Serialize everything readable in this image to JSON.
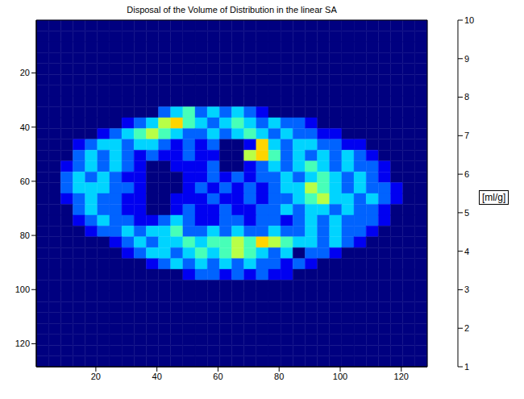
{
  "chart_data": {
    "type": "heatmap",
    "title": "Disposal of the Volume of Distribution in the linear SA",
    "xlim": [
      0.5,
      128.5
    ],
    "ylim": [
      128.5,
      0.5
    ],
    "xticks": [
      20,
      40,
      60,
      80,
      100,
      120
    ],
    "yticks": [
      20,
      40,
      60,
      80,
      100,
      120
    ],
    "x_edges": [
      0.5,
      4.5,
      8.5,
      12.5,
      16.5,
      20.5,
      24.5,
      28.5,
      32.5,
      36.5,
      40.5,
      44.5,
      48.5,
      52.5,
      56.5,
      60.5,
      64.5,
      68.5,
      72.5,
      76.5,
      80.5,
      84.5,
      88.5,
      92.5,
      96.5,
      100.5,
      104.5,
      108.5,
      112.5,
      116.5,
      120.5,
      124.5,
      128.5
    ],
    "y_edges": [
      0.5,
      4.5,
      8.5,
      12.5,
      16.5,
      20.5,
      24.5,
      28.5,
      32.5,
      36.5,
      40.5,
      44.5,
      48.5,
      52.5,
      56.5,
      60.5,
      64.5,
      68.5,
      72.5,
      76.5,
      80.5,
      84.5,
      88.5,
      92.5,
      96.5,
      100.5,
      104.5,
      108.5,
      112.5,
      116.5,
      120.5,
      124.5,
      128.5
    ],
    "cells": [
      [
        1,
        1,
        1,
        1,
        1,
        1,
        1,
        1,
        1,
        1,
        1,
        1,
        1,
        1,
        1,
        1,
        1,
        1,
        1,
        1,
        1,
        1,
        1,
        1,
        1,
        1,
        1,
        1,
        1,
        1,
        1,
        1
      ],
      [
        1,
        1,
        1,
        1,
        1,
        1,
        1,
        1,
        1,
        1,
        1,
        1,
        1,
        1,
        1,
        1,
        1,
        1,
        1,
        1,
        1,
        1,
        1,
        1,
        1,
        1,
        1,
        1,
        1,
        1,
        1,
        1
      ],
      [
        1,
        1,
        1,
        1,
        1,
        1,
        1,
        1,
        1,
        1,
        1,
        1,
        1,
        1,
        1,
        1,
        1,
        1,
        1,
        1,
        1,
        1,
        1,
        1,
        1,
        1,
        1,
        1,
        1,
        1,
        1,
        1
      ],
      [
        1,
        1,
        1,
        1,
        1,
        1,
        1,
        1,
        1,
        1,
        1,
        1,
        1,
        1,
        1,
        1,
        1,
        1,
        1,
        1,
        1,
        1,
        1,
        1,
        1,
        1,
        1,
        1,
        1,
        1,
        1,
        1
      ],
      [
        1,
        1,
        1,
        1,
        1,
        1,
        1,
        1,
        1,
        1,
        1,
        1,
        1,
        1,
        1,
        1,
        1,
        1,
        1,
        1,
        1,
        1,
        1,
        1,
        1,
        1,
        1,
        1,
        1,
        1,
        1,
        1
      ],
      [
        1,
        1,
        1,
        1,
        1,
        1,
        1,
        1,
        1,
        1,
        1,
        1,
        1,
        1,
        1,
        1,
        1,
        1,
        1,
        1,
        1,
        1,
        1,
        1,
        1,
        1,
        1,
        1,
        1,
        1,
        1,
        1
      ],
      [
        1,
        1,
        1,
        1,
        1,
        1,
        1,
        1,
        1,
        1,
        1,
        1,
        1,
        1,
        1,
        1,
        1,
        1,
        1,
        1,
        1,
        1,
        1,
        1,
        1,
        1,
        1,
        1,
        1,
        1,
        1,
        1
      ],
      [
        1,
        1,
        1,
        1,
        1,
        1,
        1,
        1,
        1,
        1,
        1,
        1,
        1,
        1,
        1,
        1,
        1,
        1,
        1,
        1,
        1,
        1,
        1,
        1,
        1,
        1,
        1,
        1,
        1,
        1,
        1,
        1
      ],
      [
        1,
        1,
        1,
        1,
        1,
        1,
        1,
        1,
        1,
        1,
        3,
        4,
        5,
        3,
        4,
        3,
        4,
        3,
        2,
        1,
        1,
        1,
        1,
        1,
        1,
        1,
        1,
        1,
        1,
        1,
        1,
        1
      ],
      [
        1,
        1,
        1,
        1,
        1,
        1,
        1,
        2,
        3,
        4,
        6,
        7,
        5,
        4,
        3,
        4,
        5,
        4,
        3,
        4,
        3,
        3,
        2,
        1,
        1,
        1,
        1,
        1,
        1,
        1,
        1,
        1
      ],
      [
        1,
        1,
        1,
        1,
        1,
        2,
        3,
        4,
        5,
        6,
        5,
        4,
        3,
        3,
        4,
        3,
        4,
        5,
        4,
        3,
        4,
        3,
        3,
        2,
        2,
        1,
        1,
        1,
        1,
        1,
        1,
        1
      ],
      [
        1,
        1,
        1,
        2,
        3,
        4,
        4,
        3,
        4,
        4,
        3,
        2,
        3,
        2,
        3,
        1,
        1,
        2,
        7,
        4,
        3,
        4,
        4,
        3,
        3,
        2,
        2,
        1,
        1,
        1,
        1,
        1
      ],
      [
        1,
        1,
        1,
        3,
        4,
        3,
        4,
        3,
        2,
        3,
        2,
        2,
        3,
        2,
        2,
        1,
        1,
        6,
        7,
        5,
        3,
        4,
        3,
        4,
        3,
        4,
        3,
        2,
        1,
        1,
        1,
        1
      ],
      [
        1,
        1,
        2,
        3,
        4,
        3,
        4,
        3,
        2,
        1,
        1,
        2,
        2,
        2,
        3,
        1,
        1,
        2,
        3,
        4,
        3,
        4,
        5,
        4,
        3,
        4,
        3,
        3,
        2,
        1,
        1,
        1
      ],
      [
        1,
        1,
        3,
        4,
        3,
        4,
        3,
        2,
        2,
        1,
        1,
        1,
        2,
        2,
        3,
        2,
        3,
        2,
        3,
        3,
        4,
        3,
        4,
        5,
        4,
        3,
        4,
        3,
        2,
        1,
        1,
        1
      ],
      [
        1,
        1,
        3,
        4,
        4,
        4,
        3,
        3,
        2,
        1,
        1,
        1,
        2,
        3,
        2,
        3,
        2,
        3,
        2,
        3,
        4,
        4,
        6,
        5,
        4,
        3,
        4,
        3,
        3,
        2,
        1,
        1
      ],
      [
        1,
        1,
        2,
        3,
        4,
        3,
        3,
        2,
        2,
        1,
        1,
        2,
        2,
        2,
        3,
        2,
        2,
        3,
        2,
        3,
        3,
        4,
        5,
        6,
        4,
        4,
        3,
        4,
        3,
        2,
        1,
        1
      ],
      [
        1,
        1,
        1,
        3,
        4,
        3,
        3,
        2,
        2,
        1,
        1,
        2,
        3,
        2,
        2,
        3,
        2,
        2,
        3,
        3,
        4,
        3,
        4,
        4,
        3,
        4,
        3,
        3,
        2,
        1,
        1,
        1
      ],
      [
        1,
        1,
        1,
        2,
        3,
        4,
        3,
        3,
        2,
        2,
        3,
        4,
        3,
        2,
        2,
        3,
        3,
        2,
        3,
        3,
        2,
        3,
        4,
        3,
        4,
        3,
        3,
        3,
        2,
        1,
        1,
        1
      ],
      [
        1,
        1,
        1,
        1,
        2,
        3,
        3,
        4,
        3,
        4,
        4,
        5,
        3,
        3,
        4,
        3,
        4,
        3,
        3,
        4,
        3,
        3,
        4,
        3,
        4,
        3,
        3,
        2,
        1,
        1,
        1,
        1
      ],
      [
        1,
        1,
        1,
        1,
        1,
        1,
        2,
        3,
        4,
        3,
        4,
        4,
        5,
        4,
        5,
        5,
        6,
        5,
        7,
        6,
        5,
        4,
        4,
        3,
        4,
        3,
        2,
        1,
        1,
        1,
        1,
        1
      ],
      [
        1,
        1,
        1,
        1,
        1,
        1,
        1,
        2,
        3,
        4,
        4,
        3,
        4,
        5,
        4,
        5,
        6,
        5,
        4,
        3,
        4,
        1,
        3,
        3,
        2,
        1,
        1,
        1,
        1,
        1,
        1,
        1
      ],
      [
        1,
        1,
        1,
        1,
        1,
        1,
        1,
        1,
        1,
        2,
        3,
        4,
        3,
        4,
        3,
        4,
        3,
        4,
        3,
        3,
        2,
        3,
        2,
        1,
        1,
        1,
        1,
        1,
        1,
        1,
        1,
        1
      ],
      [
        1,
        1,
        1,
        1,
        1,
        1,
        1,
        1,
        1,
        1,
        1,
        1,
        2,
        3,
        3,
        2,
        3,
        2,
        3,
        2,
        2,
        1,
        1,
        1,
        1,
        1,
        1,
        1,
        1,
        1,
        1,
        1
      ],
      [
        1,
        1,
        1,
        1,
        1,
        1,
        1,
        1,
        1,
        1,
        1,
        1,
        1,
        1,
        1,
        1,
        1,
        1,
        1,
        1,
        1,
        1,
        1,
        1,
        1,
        1,
        1,
        1,
        1,
        1,
        1,
        1
      ],
      [
        1,
        1,
        1,
        1,
        1,
        1,
        1,
        1,
        1,
        1,
        1,
        1,
        1,
        1,
        1,
        1,
        1,
        1,
        1,
        1,
        1,
        1,
        1,
        1,
        1,
        1,
        1,
        1,
        1,
        1,
        1,
        1
      ],
      [
        1,
        1,
        1,
        1,
        1,
        1,
        1,
        1,
        1,
        1,
        1,
        1,
        1,
        1,
        1,
        1,
        1,
        1,
        1,
        1,
        1,
        1,
        1,
        1,
        1,
        1,
        1,
        1,
        1,
        1,
        1,
        1
      ],
      [
        1,
        1,
        1,
        1,
        1,
        1,
        1,
        1,
        1,
        1,
        1,
        1,
        1,
        1,
        1,
        1,
        1,
        1,
        1,
        1,
        1,
        1,
        1,
        1,
        1,
        1,
        1,
        1,
        1,
        1,
        1,
        1
      ],
      [
        1,
        1,
        1,
        1,
        1,
        1,
        1,
        1,
        1,
        1,
        1,
        1,
        1,
        1,
        1,
        1,
        1,
        1,
        1,
        1,
        1,
        1,
        1,
        1,
        1,
        1,
        1,
        1,
        1,
        1,
        1,
        1
      ],
      [
        1,
        1,
        1,
        1,
        1,
        1,
        1,
        1,
        1,
        1,
        1,
        1,
        1,
        1,
        1,
        1,
        1,
        1,
        1,
        1,
        1,
        1,
        1,
        1,
        1,
        1,
        1,
        1,
        1,
        1,
        1,
        1
      ],
      [
        1,
        1,
        1,
        1,
        1,
        1,
        1,
        1,
        1,
        1,
        1,
        1,
        1,
        1,
        1,
        1,
        1,
        1,
        1,
        1,
        1,
        1,
        1,
        1,
        1,
        1,
        1,
        1,
        1,
        1,
        1,
        1
      ],
      [
        1,
        1,
        1,
        1,
        1,
        1,
        1,
        1,
        1,
        1,
        1,
        1,
        1,
        1,
        1,
        1,
        1,
        1,
        1,
        1,
        1,
        1,
        1,
        1,
        1,
        1,
        1,
        1,
        1,
        1,
        1,
        1
      ]
    ],
    "colorbar": {
      "label": "[ml/g]",
      "range": [
        1,
        10
      ],
      "ticks": [
        1,
        2,
        3,
        4,
        5,
        6,
        7,
        8,
        9,
        10
      ]
    }
  }
}
